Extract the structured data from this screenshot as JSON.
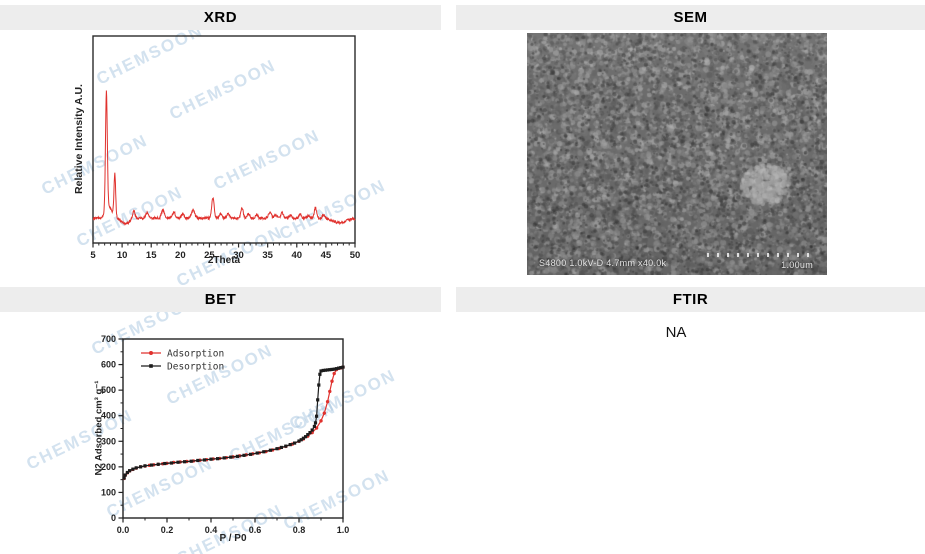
{
  "panels": {
    "xrd": {
      "title": "XRD"
    },
    "sem": {
      "title": "SEM",
      "caption": "S4800 1.0kV-D 4.7mm x40.0k",
      "scale_label": "1.00um"
    },
    "bet": {
      "title": "BET"
    },
    "ftir": {
      "title": "FTIR",
      "value": "NA"
    }
  },
  "watermark": {
    "text": "CHEMSOON",
    "color": "#a4c3de"
  },
  "colors": {
    "header_bg": "#ededed",
    "xrd_line": "#e0312d",
    "adsorption": "#e0312d",
    "desorption": "#1c1c1c"
  },
  "chart_data": [
    {
      "id": "xrd",
      "type": "line",
      "panel": "XRD",
      "xlabel": "2Theta",
      "ylabel": "Relative Intensity A.U.",
      "xlim": [
        5,
        50
      ],
      "x_ticks": [
        5,
        10,
        15,
        20,
        25,
        30,
        35,
        40,
        45,
        50
      ],
      "x_tick_labels": [
        "5",
        "10",
        "15",
        "20",
        "25",
        "30",
        "35",
        "40",
        "45",
        "50"
      ],
      "x_minor_step": 1,
      "grid": false,
      "line_color": "#e0312d",
      "baseline_level": 0.12,
      "amplitude": 0.57,
      "noise": 0.012,
      "peaks_format": [
        "two_theta",
        "relative_intensity",
        "half_width"
      ],
      "peaks": [
        [
          7.3,
          1.0,
          0.22
        ],
        [
          7.7,
          0.1,
          0.8
        ],
        [
          8.75,
          0.36,
          0.2
        ],
        [
          12.0,
          0.07,
          0.3
        ],
        [
          14.3,
          0.05,
          0.3
        ],
        [
          17.0,
          0.07,
          0.35
        ],
        [
          18.9,
          0.05,
          0.35
        ],
        [
          20.4,
          0.04,
          0.3
        ],
        [
          22.2,
          0.07,
          0.4
        ],
        [
          25.6,
          0.17,
          0.3
        ],
        [
          26.9,
          0.04,
          0.3
        ],
        [
          28.2,
          0.04,
          0.3
        ],
        [
          30.6,
          0.08,
          0.3
        ],
        [
          31.7,
          0.04,
          0.3
        ],
        [
          33.1,
          0.03,
          0.3
        ],
        [
          35.4,
          0.05,
          0.35
        ],
        [
          36.4,
          0.03,
          0.3
        ],
        [
          37.5,
          0.045,
          0.35
        ],
        [
          38.9,
          0.025,
          0.3
        ],
        [
          40.6,
          0.035,
          0.3
        ],
        [
          41.9,
          0.02,
          0.3
        ],
        [
          43.2,
          0.09,
          0.28
        ],
        [
          44.6,
          0.03,
          0.3
        ]
      ],
      "baseline_dips": [
        [
          10.6,
          0.025,
          1.0
        ],
        [
          47.3,
          0.022,
          1.6
        ]
      ]
    },
    {
      "id": "bet",
      "type": "line",
      "panel": "BET",
      "xlabel": "P / P0",
      "ylabel": "N2 Adsorbed cm³ g⁻¹",
      "xlim": [
        0,
        1
      ],
      "ylim": [
        0,
        700
      ],
      "x_ticks": [
        0,
        0.2,
        0.4,
        0.6,
        0.8,
        1.0
      ],
      "x_tick_labels": [
        "0.0",
        "0.2",
        "0.4",
        "0.6",
        "0.8",
        "1.0"
      ],
      "y_ticks": [
        0,
        100,
        200,
        300,
        400,
        500,
        600,
        700
      ],
      "y_tick_labels": [
        "0",
        "100",
        "200",
        "300",
        "400",
        "500",
        "600",
        "700"
      ],
      "x_minor_step": 0.1,
      "y_minor_step": 50,
      "grid": false,
      "legend_position": "top-left",
      "series": [
        {
          "name": "Adsorption",
          "color": "#e0312d",
          "marker": "circle",
          "points": [
            [
              0.005,
              155
            ],
            [
              0.01,
              167
            ],
            [
              0.02,
              177
            ],
            [
              0.03,
              184
            ],
            [
              0.045,
              190
            ],
            [
              0.06,
              195
            ],
            [
              0.08,
              200
            ],
            [
              0.1,
              203
            ],
            [
              0.12,
              206
            ],
            [
              0.14,
              208
            ],
            [
              0.16,
              210
            ],
            [
              0.18,
              212
            ],
            [
              0.2,
              214
            ],
            [
              0.23,
              217
            ],
            [
              0.26,
              219
            ],
            [
              0.29,
              221
            ],
            [
              0.32,
              223
            ],
            [
              0.35,
              226
            ],
            [
              0.38,
              228
            ],
            [
              0.41,
              231
            ],
            [
              0.44,
              233
            ],
            [
              0.47,
              236
            ],
            [
              0.5,
              239
            ],
            [
              0.53,
              243
            ],
            [
              0.56,
              247
            ],
            [
              0.59,
              251
            ],
            [
              0.62,
              255
            ],
            [
              0.65,
              260
            ],
            [
              0.68,
              266
            ],
            [
              0.71,
              272
            ],
            [
              0.74,
              280
            ],
            [
              0.77,
              289
            ],
            [
              0.8,
              300
            ],
            [
              0.82,
              309
            ],
            [
              0.84,
              320
            ],
            [
              0.86,
              334
            ],
            [
              0.88,
              352
            ],
            [
              0.9,
              380
            ],
            [
              0.915,
              410
            ],
            [
              0.93,
              455
            ],
            [
              0.94,
              495
            ],
            [
              0.95,
              535
            ],
            [
              0.96,
              565
            ],
            [
              0.97,
              580
            ],
            [
              0.98,
              585
            ],
            [
              0.99,
              587
            ],
            [
              1.0,
              590
            ]
          ]
        },
        {
          "name": "Desorption",
          "color": "#1c1c1c",
          "marker": "square",
          "points": [
            [
              1.0,
              590
            ],
            [
              0.99,
              588
            ],
            [
              0.98,
              586
            ],
            [
              0.97,
              584
            ],
            [
              0.96,
              582
            ],
            [
              0.95,
              581
            ],
            [
              0.94,
              580
            ],
            [
              0.93,
              579
            ],
            [
              0.92,
              578
            ],
            [
              0.91,
              577
            ],
            [
              0.9,
              575
            ],
            [
              0.895,
              562
            ],
            [
              0.89,
              520
            ],
            [
              0.885,
              462
            ],
            [
              0.88,
              398
            ],
            [
              0.875,
              372
            ],
            [
              0.87,
              358
            ],
            [
              0.86,
              344
            ],
            [
              0.85,
              334
            ],
            [
              0.84,
              326
            ],
            [
              0.83,
              318
            ],
            [
              0.82,
              312
            ],
            [
              0.81,
              306
            ],
            [
              0.8,
              301
            ],
            [
              0.78,
              293
            ],
            [
              0.76,
              287
            ],
            [
              0.74,
              281
            ],
            [
              0.72,
              276
            ],
            [
              0.7,
              271
            ],
            [
              0.67,
              265
            ],
            [
              0.64,
              259
            ],
            [
              0.61,
              254
            ],
            [
              0.58,
              249
            ],
            [
              0.55,
              245
            ],
            [
              0.52,
              241
            ],
            [
              0.49,
              238
            ],
            [
              0.46,
              235
            ],
            [
              0.43,
              232
            ],
            [
              0.4,
              230
            ],
            [
              0.37,
              227
            ],
            [
              0.34,
              225
            ],
            [
              0.31,
              222
            ],
            [
              0.28,
              220
            ],
            [
              0.25,
              218
            ],
            [
              0.22,
              215
            ],
            [
              0.19,
              213
            ],
            [
              0.16,
              210
            ],
            [
              0.13,
              207
            ],
            [
              0.1,
              204
            ],
            [
              0.08,
              200
            ],
            [
              0.06,
              196
            ],
            [
              0.045,
              191
            ],
            [
              0.03,
              185
            ],
            [
              0.02,
              178
            ],
            [
              0.01,
              168
            ],
            [
              0.005,
              156
            ]
          ]
        }
      ]
    }
  ]
}
